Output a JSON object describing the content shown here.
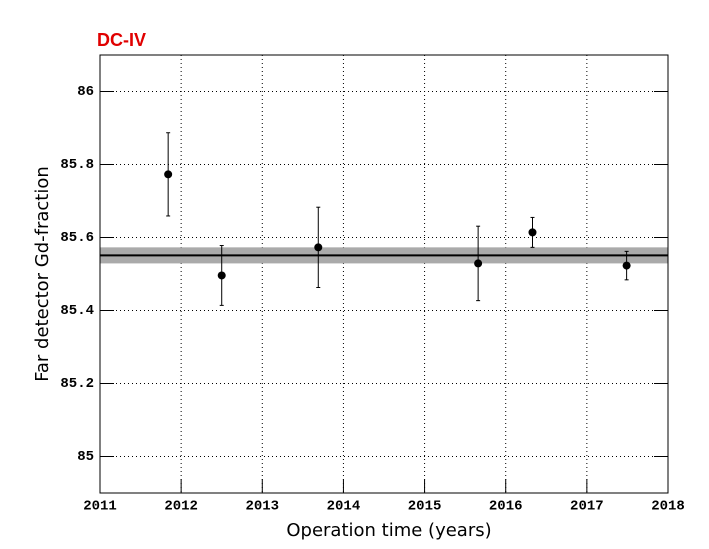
{
  "chart_data": {
    "type": "errorbar",
    "title": "DC-IV",
    "xlabel": "Operation time (years)",
    "ylabel": "Far detector Gd-fraction",
    "series": [
      {
        "color": "#000000",
        "x": [
          2011.84,
          2012.5,
          2013.69,
          2015.66,
          2016.33,
          2017.49
        ],
        "values": [
          85.773,
          85.496,
          85.573,
          85.529,
          85.614,
          85.523
        ],
        "errors": [
          0.114,
          0.082,
          0.11,
          0.102,
          0.041,
          0.039
        ]
      }
    ],
    "fit": {
      "value": 85.551,
      "error": 0.022,
      "color": "#000000",
      "band_color": "#aaaaaa"
    },
    "xlim": [
      2011,
      2018
    ],
    "xticks": [
      2011,
      2012,
      2013,
      2014,
      2015,
      2016,
      2017,
      2018
    ],
    "ylim": [
      84.9,
      86.1
    ],
    "yticks": [
      85,
      85.2,
      85.4,
      85.6,
      85.8,
      86
    ],
    "grid": true
  }
}
